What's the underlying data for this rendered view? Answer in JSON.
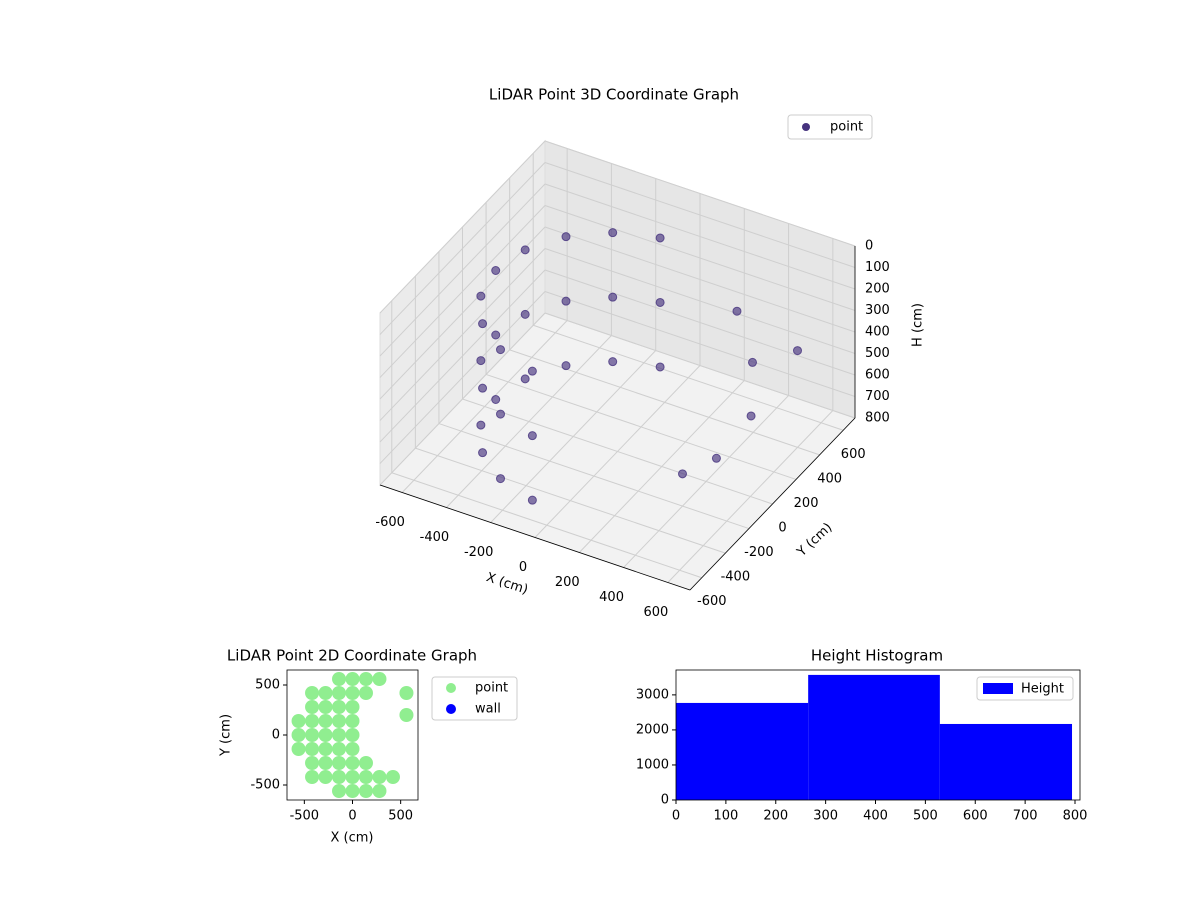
{
  "chart_data": [
    {
      "type": "scatter3d",
      "title": "LiDAR Point 3D Coordinate Graph",
      "xlabel": "X (cm)",
      "ylabel": "Y (cm)",
      "zlabel": "H (cm)",
      "xlim": [
        -700,
        700
      ],
      "ylim": [
        -700,
        700
      ],
      "zlim": [
        800,
        0
      ],
      "xticks": [
        -600,
        -400,
        -200,
        0,
        200,
        400,
        600
      ],
      "yticks": [
        -600,
        -400,
        -200,
        0,
        200,
        400,
        600
      ],
      "zticks": [
        0,
        100,
        200,
        300,
        400,
        500,
        600,
        700,
        800
      ],
      "grid": true,
      "legend": "upper right",
      "series": [
        {
          "name": "point",
          "color": "#46337e",
          "x": [
            -96,
            -96,
            -96,
            -275,
            -275,
            -275,
            -421,
            -421,
            -421,
            -517,
            -517,
            -517,
            -550,
            -550,
            -550,
            -517,
            -517,
            -517,
            -421,
            -421,
            -421,
            -275,
            -275,
            -275,
            -96,
            -96,
            -96,
            300,
            450,
            550,
            500,
            400,
            600
          ],
          "y": [
            542,
            542,
            542,
            476,
            476,
            476,
            354,
            354,
            354,
            188,
            188,
            188,
            0,
            0,
            0,
            -188,
            -188,
            -188,
            -354,
            -354,
            -354,
            -476,
            -476,
            -476,
            -542,
            -542,
            -542,
            450,
            300,
            100,
            -100,
            -200,
            400
          ],
          "z": [
            150,
            450,
            750,
            150,
            450,
            750,
            150,
            450,
            750,
            150,
            450,
            750,
            150,
            450,
            750,
            150,
            450,
            750,
            150,
            450,
            750,
            150,
            450,
            750,
            150,
            450,
            750,
            300,
            400,
            500,
            600,
            650,
            350
          ]
        }
      ]
    },
    {
      "type": "scatter",
      "title": "LiDAR Point 2D Coordinate Graph",
      "xlabel": "X (cm)",
      "ylabel": "Y (cm)",
      "xlim": [
        -680,
        680
      ],
      "ylim": [
        -650,
        650
      ],
      "xticks": [
        -500,
        0,
        500
      ],
      "yticks": [
        -500,
        0,
        500
      ],
      "legend": "outside upper right",
      "series": [
        {
          "name": "point",
          "color": "#90ee90",
          "x": [
            -560,
            -560,
            -560,
            -420,
            -420,
            -420,
            -420,
            -420,
            -420,
            -420,
            -280,
            -280,
            -280,
            -280,
            -280,
            -280,
            -280,
            -140,
            -140,
            -140,
            -140,
            -140,
            -140,
            -140,
            -140,
            -140,
            0,
            0,
            0,
            0,
            0,
            0,
            0,
            0,
            0,
            140,
            140,
            140,
            140,
            140,
            280,
            280,
            280,
            420,
            560,
            560
          ],
          "y": [
            -140,
            0,
            140,
            -420,
            -280,
            -140,
            0,
            140,
            280,
            420,
            -420,
            -280,
            -140,
            0,
            140,
            280,
            420,
            -560,
            -420,
            -280,
            -140,
            0,
            140,
            280,
            420,
            560,
            -560,
            -420,
            -280,
            -140,
            0,
            140,
            280,
            420,
            560,
            -560,
            -420,
            -280,
            420,
            560,
            -560,
            -420,
            560,
            -420,
            420,
            200
          ]
        },
        {
          "name": "wall",
          "color": "#0000ff",
          "x": [],
          "y": []
        }
      ]
    },
    {
      "type": "histogram",
      "title": "Height Histogram",
      "bins": [
        0,
        265,
        529,
        794
      ],
      "counts": [
        2770,
        3570,
        2170
      ],
      "xlim": [
        0,
        810
      ],
      "ylim": [
        0,
        3710
      ],
      "xticks": [
        0,
        100,
        200,
        300,
        400,
        500,
        600,
        700,
        800
      ],
      "yticks": [
        0,
        1000,
        2000,
        3000
      ],
      "series_name": "Height",
      "color": "#0000ff",
      "legend": "upper right"
    }
  ]
}
